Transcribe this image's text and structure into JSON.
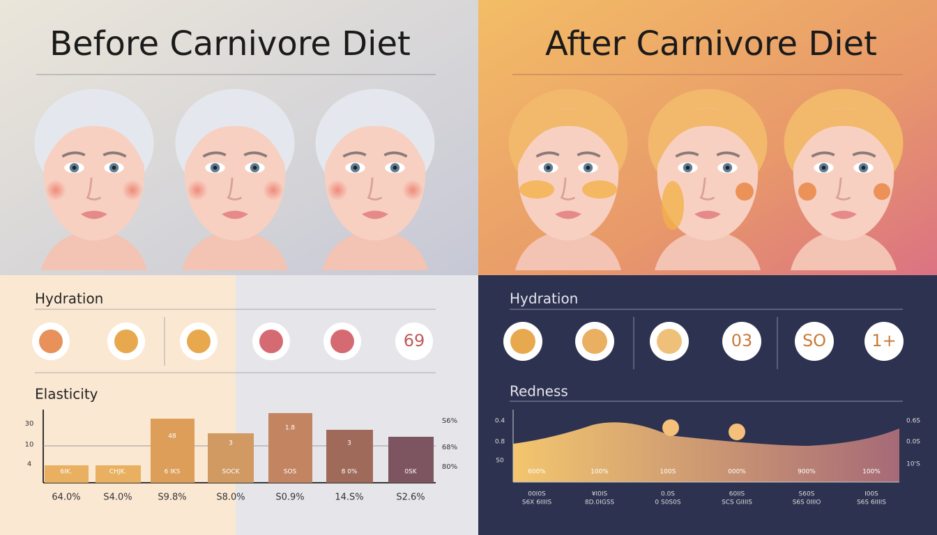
{
  "before": {
    "title": "Before Carnivore Diet",
    "hydration": {
      "label": "Hydration",
      "icon_text": "69"
    },
    "elasticity": {
      "label": "Elasticity",
      "left_axis": [
        "30",
        "10",
        "4"
      ],
      "right_axis": [
        "S6%",
        "68%",
        "80%"
      ],
      "bar_labels": [
        "6IK.",
        "CHJK.",
        "6 IKS",
        "SOCK",
        "SOS",
        "8 0%",
        "0SK"
      ],
      "bar_top_labels": [
        "48",
        "3",
        "1.8",
        "3"
      ],
      "bottom_labels": [
        "64.0%",
        "S4.0%",
        "S9.8%",
        "S8.0%",
        "S0.9%",
        "14.S%",
        "S2.6%"
      ]
    }
  },
  "after": {
    "title": "After Carnivore Diet",
    "hydration": {
      "label": "Hydration",
      "icon_texts": [
        "03",
        "SO",
        "1+"
      ]
    },
    "redness": {
      "label": "Redness",
      "left_axis": [
        "0.4",
        "0.8",
        "S0"
      ],
      "right_axis": [
        "0.6S",
        "0.0S",
        "10'S"
      ],
      "inner_labels": [
        "600%",
        "100%",
        "100S",
        "000%",
        "900%",
        "100%"
      ],
      "bottom_labels": [
        "00I0S",
        "¥I0IS",
        "0.0S",
        "60IIS",
        "S60S",
        "I00S"
      ],
      "bottom_sublabels": [
        "S6X 6IIIIS",
        "8D.0IGSS",
        "0 S0S0S",
        "SCS GIIIIS",
        "S6S 0IIIO",
        "S6S 6IIIIS"
      ]
    }
  }
}
